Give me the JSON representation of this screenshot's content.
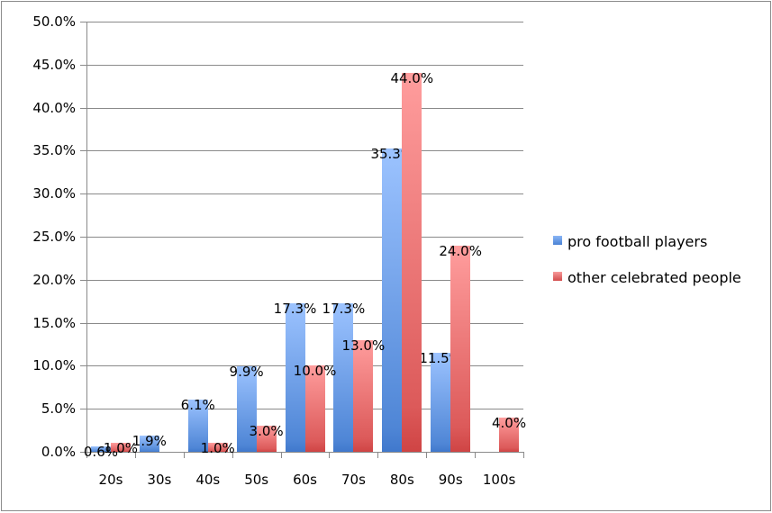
{
  "chart_data": {
    "type": "bar",
    "title": "",
    "xlabel": "",
    "ylabel": "",
    "ylim": [
      0,
      50
    ],
    "y_ticks": [
      "0.0%",
      "5.0%",
      "10.0%",
      "15.0%",
      "20.0%",
      "25.0%",
      "30.0%",
      "35.0%",
      "40.0%",
      "45.0%",
      "50.0%"
    ],
    "grid": true,
    "legend_position": "right",
    "categories": [
      "20s",
      "30s",
      "40s",
      "50s",
      "60s",
      "70s",
      "80s",
      "90s",
      "100s"
    ],
    "series": [
      {
        "name": "pro football players",
        "color": "#4f86d6",
        "values": [
          0.6,
          1.9,
          6.1,
          9.9,
          17.3,
          17.3,
          35.3,
          11.5,
          null
        ],
        "labels": [
          "0.6%",
          "1.9%",
          "6.1%",
          "9.9%",
          "17.3%",
          "17.3%",
          "35.3%",
          "11.5%",
          ""
        ]
      },
      {
        "name": "other celebrated people",
        "color": "#dc5a5a",
        "values": [
          1.0,
          null,
          1.0,
          3.0,
          10.0,
          13.0,
          44.0,
          24.0,
          4.0
        ],
        "labels": [
          "1.0%",
          "",
          "1.0%",
          "3.0%",
          "10.0%",
          "13.0%",
          "44.0%",
          "24.0%",
          "4.0%"
        ]
      }
    ]
  }
}
